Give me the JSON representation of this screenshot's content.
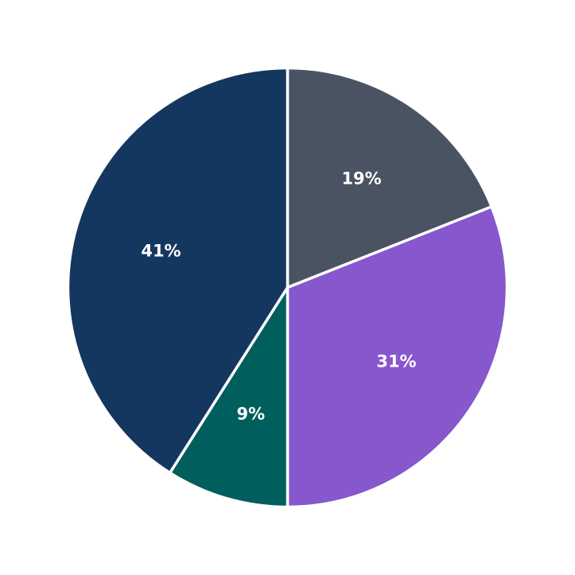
{
  "chart_data": {
    "type": "pie",
    "title": "",
    "slices": [
      {
        "label": "19%",
        "value": 19,
        "color": "#4a5362"
      },
      {
        "label": "31%",
        "value": 31,
        "color": "#8657cd"
      },
      {
        "label": "9%",
        "value": 9,
        "color": "#005e5d"
      },
      {
        "label": "41%",
        "value": 41,
        "color": "#14375f"
      }
    ],
    "start_angle": "top",
    "direction": "clockwise",
    "legend": "none"
  }
}
